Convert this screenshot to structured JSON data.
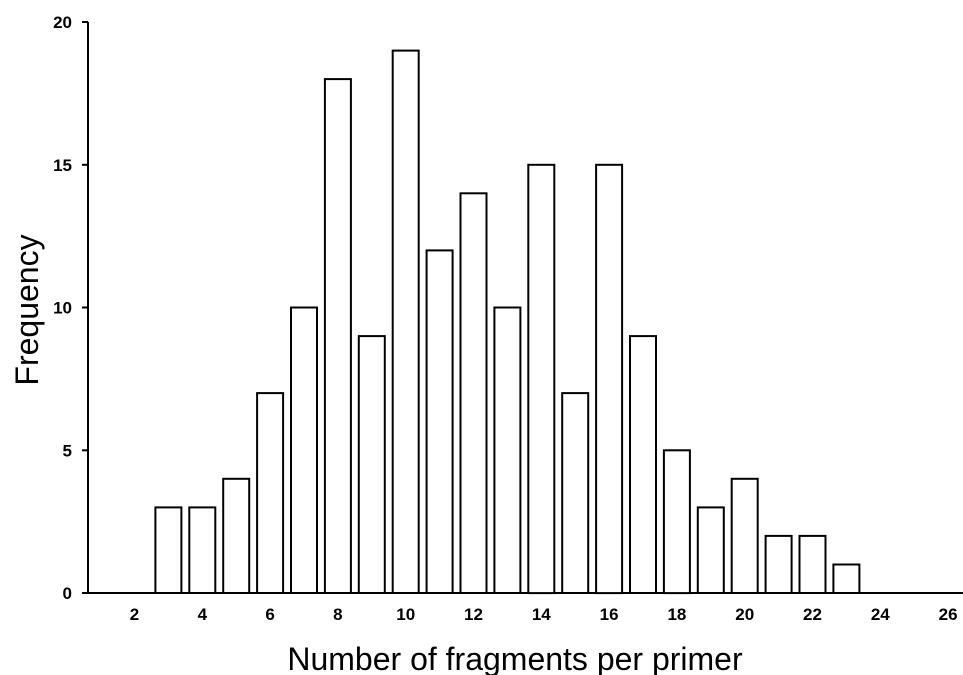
{
  "chart_data": {
    "type": "bar",
    "title": "",
    "xlabel": "Number of fragments per primer",
    "ylabel": "Frequency",
    "x": [
      3,
      4,
      5,
      6,
      7,
      8,
      9,
      10,
      11,
      12,
      13,
      14,
      15,
      16,
      17,
      18,
      19,
      20,
      21,
      22,
      23
    ],
    "values": [
      3,
      3,
      4,
      7,
      10,
      18,
      9,
      19,
      12,
      14,
      10,
      15,
      7,
      15,
      9,
      5,
      3,
      4,
      2,
      2,
      1
    ],
    "xlim": [
      1,
      27
    ],
    "ylim": [
      0,
      20
    ],
    "xticks": [
      "2",
      "4",
      "6",
      "8",
      "10",
      "12",
      "14",
      "16",
      "18",
      "20",
      "22",
      "24",
      "26"
    ],
    "yticks": [
      "0",
      "5",
      "10",
      "15",
      "20"
    ],
    "grid": false,
    "legend": "none",
    "colors": {
      "bar_fill": "#ffffff",
      "bar_stroke": "#000000",
      "axis": "#000000"
    }
  }
}
